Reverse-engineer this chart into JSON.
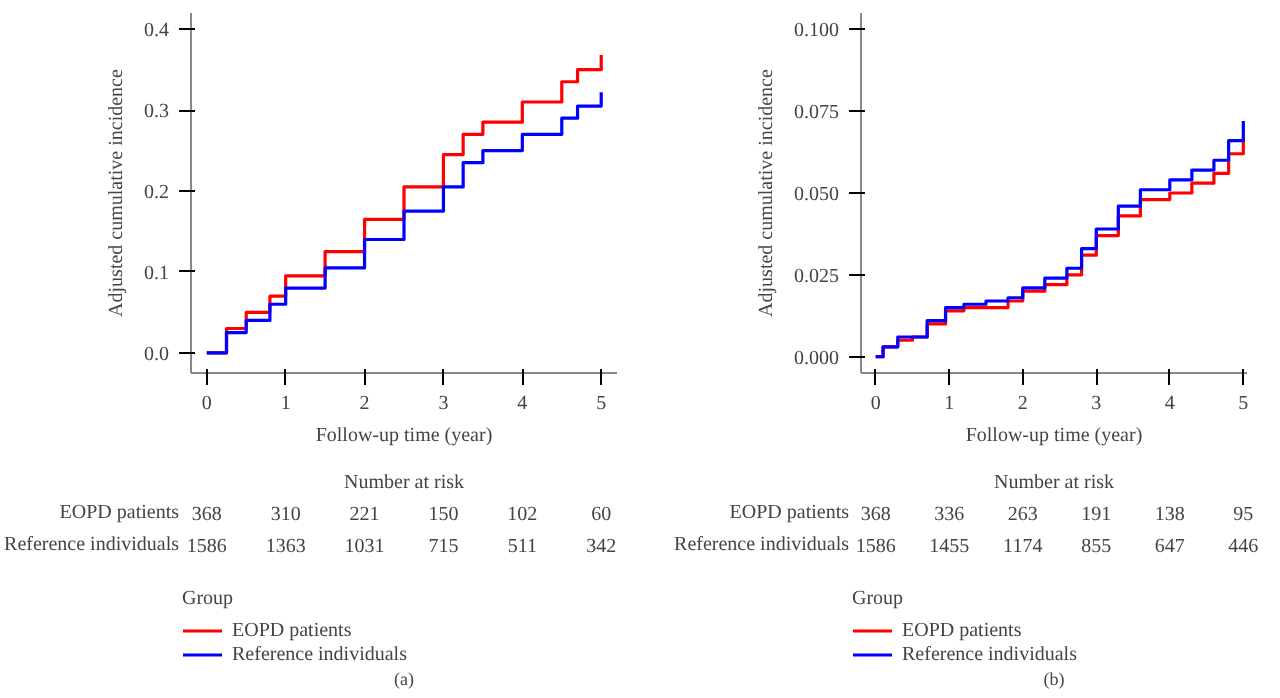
{
  "chart_data": [
    {
      "type": "step",
      "xlabel": "Follow-up time (year)",
      "ylabel": "Adjusted cumulative incidence",
      "legend_title": "Group",
      "legend": "bottom",
      "grid": false,
      "xlim": [
        -0.2,
        5.2
      ],
      "xticks": [
        0,
        1,
        2,
        3,
        4,
        5
      ],
      "ylim": [
        -0.025,
        0.42
      ],
      "yticks": [
        {
          "value": 0,
          "label": "0.0"
        },
        0.1,
        0.2,
        0.3,
        0.4
      ],
      "series": [
        {
          "name": "EOPD patients",
          "color": "#ff0000",
          "x": [
            0,
            0.25,
            0.5,
            0.8,
            1,
            1.5,
            2,
            2.5,
            3,
            3.25,
            3.5,
            4,
            4.5,
            4.7,
            5
          ],
          "values": [
            0,
            0.03,
            0.05,
            0.07,
            0.095,
            0.125,
            0.165,
            0.205,
            0.245,
            0.27,
            0.285,
            0.31,
            0.335,
            0.35,
            0.368
          ]
        },
        {
          "name": "Reference individuals",
          "color": "#0000ff",
          "x": [
            0,
            0.25,
            0.5,
            0.8,
            1,
            1.5,
            2,
            2.5,
            3,
            3.25,
            3.5,
            4,
            4.5,
            4.7,
            5
          ],
          "values": [
            0,
            0.025,
            0.04,
            0.06,
            0.08,
            0.105,
            0.14,
            0.175,
            0.205,
            0.235,
            0.25,
            0.27,
            0.29,
            0.305,
            0.322
          ]
        }
      ],
      "annotations": [
        "Number at risk",
        "EOPD patients",
        "368",
        "310",
        "221",
        "150",
        "102",
        "60",
        "Reference individuals",
        "1586",
        "1363",
        "1031",
        "715",
        "511",
        "342",
        "(a)"
      ]
    },
    {
      "type": "step",
      "xlabel": "Follow-up time (year)",
      "ylabel": "Adjusted cumulative incidence",
      "legend_title": "Group",
      "legend": "bottom",
      "grid": false,
      "xlim": [
        -0.2,
        5.05
      ],
      "xticks": [
        0,
        1,
        2,
        3,
        4,
        5
      ],
      "ylim": [
        -0.005,
        0.105
      ],
      "yticks": [
        {
          "value": 0,
          "label": "0.000"
        },
        {
          "value": 0.025,
          "label": "0.025"
        },
        {
          "value": 0.05,
          "label": "0.050"
        },
        {
          "value": 0.075,
          "label": "0.075"
        },
        {
          "value": 0.1,
          "label": "0.100"
        }
      ],
      "series": [
        {
          "name": "EOPD patients",
          "color": "#ff0000",
          "x": [
            0,
            0.1,
            0.3,
            0.5,
            0.7,
            0.95,
            1.2,
            1.5,
            1.8,
            2,
            2.3,
            2.6,
            2.8,
            3,
            3.3,
            3.6,
            4,
            4.3,
            4.6,
            4.8,
            5
          ],
          "values": [
            0,
            0.003,
            0.005,
            0.006,
            0.01,
            0.014,
            0.015,
            0.015,
            0.017,
            0.02,
            0.022,
            0.025,
            0.031,
            0.037,
            0.043,
            0.048,
            0.05,
            0.053,
            0.056,
            0.062,
            0.067
          ]
        },
        {
          "name": "Reference individuals",
          "color": "#0000ff",
          "x": [
            0,
            0.1,
            0.3,
            0.5,
            0.7,
            0.95,
            1.2,
            1.5,
            1.8,
            2,
            2.3,
            2.6,
            2.8,
            3,
            3.3,
            3.6,
            4,
            4.3,
            4.6,
            4.8,
            5
          ],
          "values": [
            0,
            0.003,
            0.006,
            0.006,
            0.011,
            0.015,
            0.016,
            0.017,
            0.018,
            0.021,
            0.024,
            0.027,
            0.033,
            0.039,
            0.046,
            0.051,
            0.054,
            0.057,
            0.06,
            0.066,
            0.072
          ]
        }
      ],
      "annotations": [
        "Number at risk",
        "EOPD patients",
        "368",
        "336",
        "263",
        "191",
        "138",
        "95",
        "Reference individuals",
        "1586",
        "1455",
        "1174",
        "855",
        "647",
        "446",
        "(b)"
      ]
    }
  ]
}
